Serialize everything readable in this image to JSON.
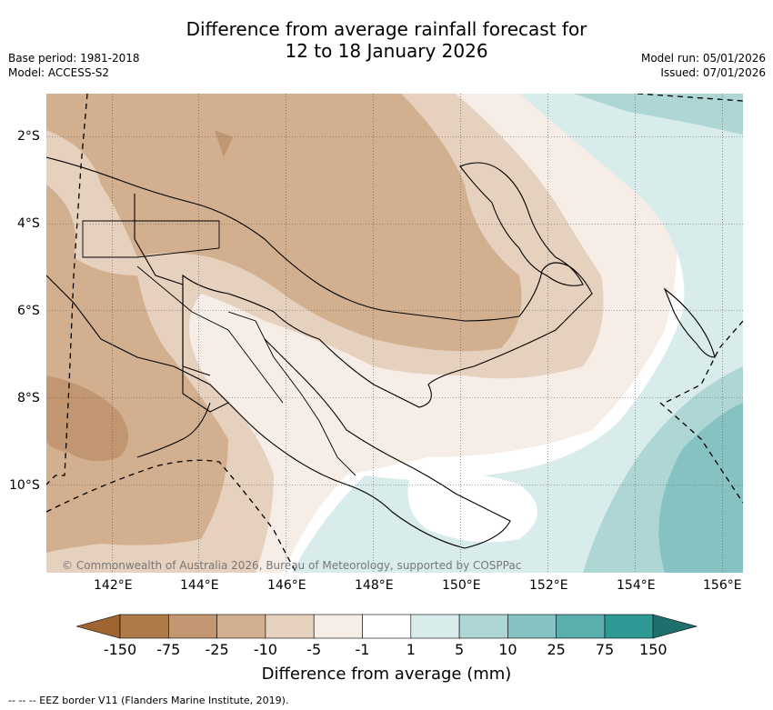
{
  "header": {
    "title_line1": "Difference from average rainfall forecast for",
    "title_line2": "12 to 18 January 2026",
    "base_period": "Base period: 1981-2018",
    "model": "Model: ACCESS-S2",
    "model_run": "Model run: 05/01/2026",
    "issued": "Issued: 07/01/2026"
  },
  "map": {
    "lat_labels": [
      "2°S",
      "4°S",
      "6°S",
      "8°S",
      "10°S"
    ],
    "lon_labels": [
      "142°E",
      "144°E",
      "146°E",
      "148°E",
      "150°E",
      "152°E",
      "154°E",
      "156°E"
    ],
    "copyright": "© Commonwealth of Australia 2026, Bureau of Meteorology, supported by COSPPac"
  },
  "colorbar": {
    "title": "Difference from average (mm)",
    "ticks": [
      "-150",
      "-75",
      "-25",
      "-10",
      "-5",
      "-1",
      "1",
      "5",
      "10",
      "25",
      "75",
      "150"
    ],
    "colors": {
      "lt_neg150": "#9e6530",
      "neg150_neg75": "#ad7a48",
      "neg75_neg25": "#c29670",
      "neg25_neg10": "#d2b08f",
      "neg10_neg5": "#e6d1bf",
      "neg5_neg1": "#f5ede6",
      "neg1_1": "#ffffff",
      "1_5": "#d8eceb",
      "5_10": "#add6d5",
      "10_25": "#86c2c1",
      "25_75": "#5aaeac",
      "75_150": "#2e9895",
      "gt_150": "#1f6f6c"
    }
  },
  "footer": {
    "legend_text": "--  --  -- EEZ border V11 (Flanders Marine Institute, 2019)."
  }
}
